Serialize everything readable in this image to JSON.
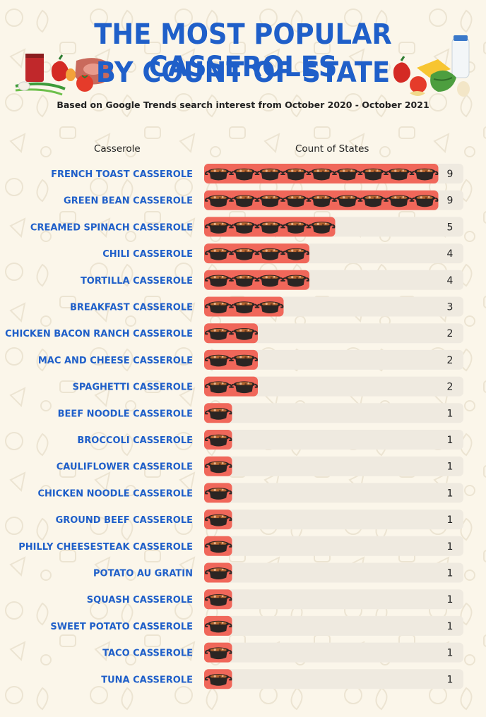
{
  "header": {
    "title_line1": "THE MOST POPULAR CASSEROLES",
    "title_line2": "BY COUNT OF STATE",
    "subtitle": "Based on Google Trends search interest from October 2020 - October 2021"
  },
  "columns": {
    "category_header": "Casserole",
    "value_header": "Count of States"
  },
  "colors": {
    "title": "#1f5fc9",
    "bar": "#f0675a",
    "track": "#efeae0",
    "pot": "#2b2523",
    "stew": "#b5652f"
  },
  "icons": {
    "unit": "casserole-pot-icon",
    "left_deco": "food-ingredients-left",
    "right_deco": "food-ingredients-right"
  },
  "chart_data": {
    "type": "bar",
    "orientation": "horizontal",
    "title": "THE MOST POPULAR CASSEROLES BY COUNT OF STATE",
    "subtitle": "Based on Google Trends search interest from October 2020 - October 2021",
    "xlabel": "Count of States",
    "ylabel": "Casserole",
    "xlim": [
      0,
      9
    ],
    "categories": [
      "FRENCH TOAST CASSEROLE",
      "GREEN BEAN CASSEROLE",
      "CREAMED SPINACH CASSEROLE",
      "CHILI CASSEROLE",
      "TORTILLA CASSEROLE",
      "BREAKFAST CASSEROLE",
      "CHICKEN BACON RANCH CASSEROLE",
      "MAC AND CHEESE CASSEROLE",
      "SPAGHETTI CASSEROLE",
      "BEEF NOODLE CASSEROLE",
      "BROCCOLI CASSEROLE",
      "CAULIFLOWER CASSEROLE",
      "CHICKEN NOODLE CASSEROLE",
      "GROUND BEEF CASSEROLE",
      "PHILLY CHEESESTEAK CASSEROLE",
      "POTATO AU GRATIN",
      "SQUASH CASSEROLE",
      "SWEET POTATO CASSEROLE",
      "TACO CASSEROLE",
      "TUNA CASSEROLE"
    ],
    "values": [
      9,
      9,
      5,
      4,
      4,
      3,
      2,
      2,
      2,
      1,
      1,
      1,
      1,
      1,
      1,
      1,
      1,
      1,
      1,
      1
    ],
    "grid": false,
    "legend": "none"
  }
}
